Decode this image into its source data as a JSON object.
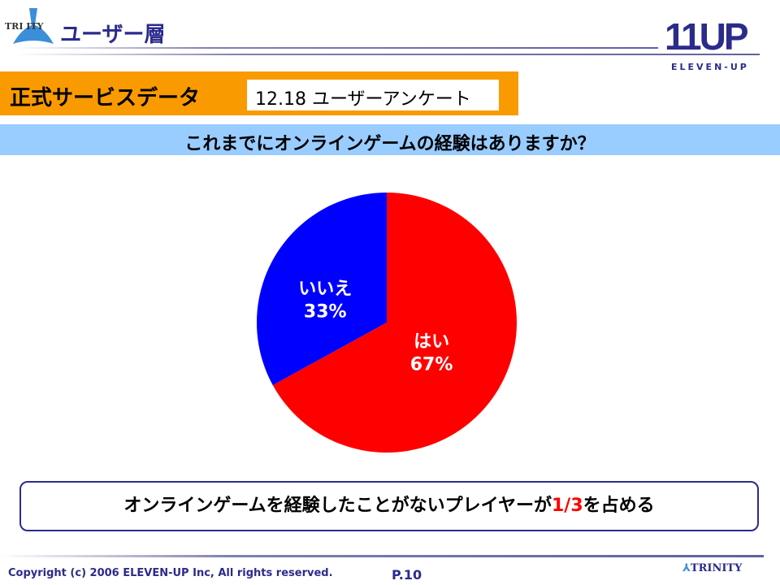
{
  "header": {
    "title": "ユーザー層",
    "logo_left": "TRINITY",
    "logo_right_main": "11UP",
    "logo_right_sub": "ELEVEN-UP"
  },
  "banner": {
    "label": "正式サービスデータ",
    "date_label": "12.18 ユーザーアンケート"
  },
  "question": "これまでにオンラインゲームの経験はありますか？",
  "chart_data": {
    "type": "pie",
    "start": "top",
    "categories": [
      "いいえ",
      "はい"
    ],
    "values": [
      33,
      67
    ],
    "labels": [
      "33%",
      "67%"
    ],
    "colors": [
      "#0000ff",
      "#ff0000"
    ]
  },
  "conclusion": {
    "before": "オンラインゲームを経験したことがないプレイヤーが",
    "highlight": "1/3",
    "after": "を占める",
    "highlight_color": "#ff0000"
  },
  "footer": {
    "copyright": "Copyright (c) 2006 ELEVEN-UP Inc, All rights reserved.",
    "page": "P.10",
    "logo": "TRINITY"
  }
}
